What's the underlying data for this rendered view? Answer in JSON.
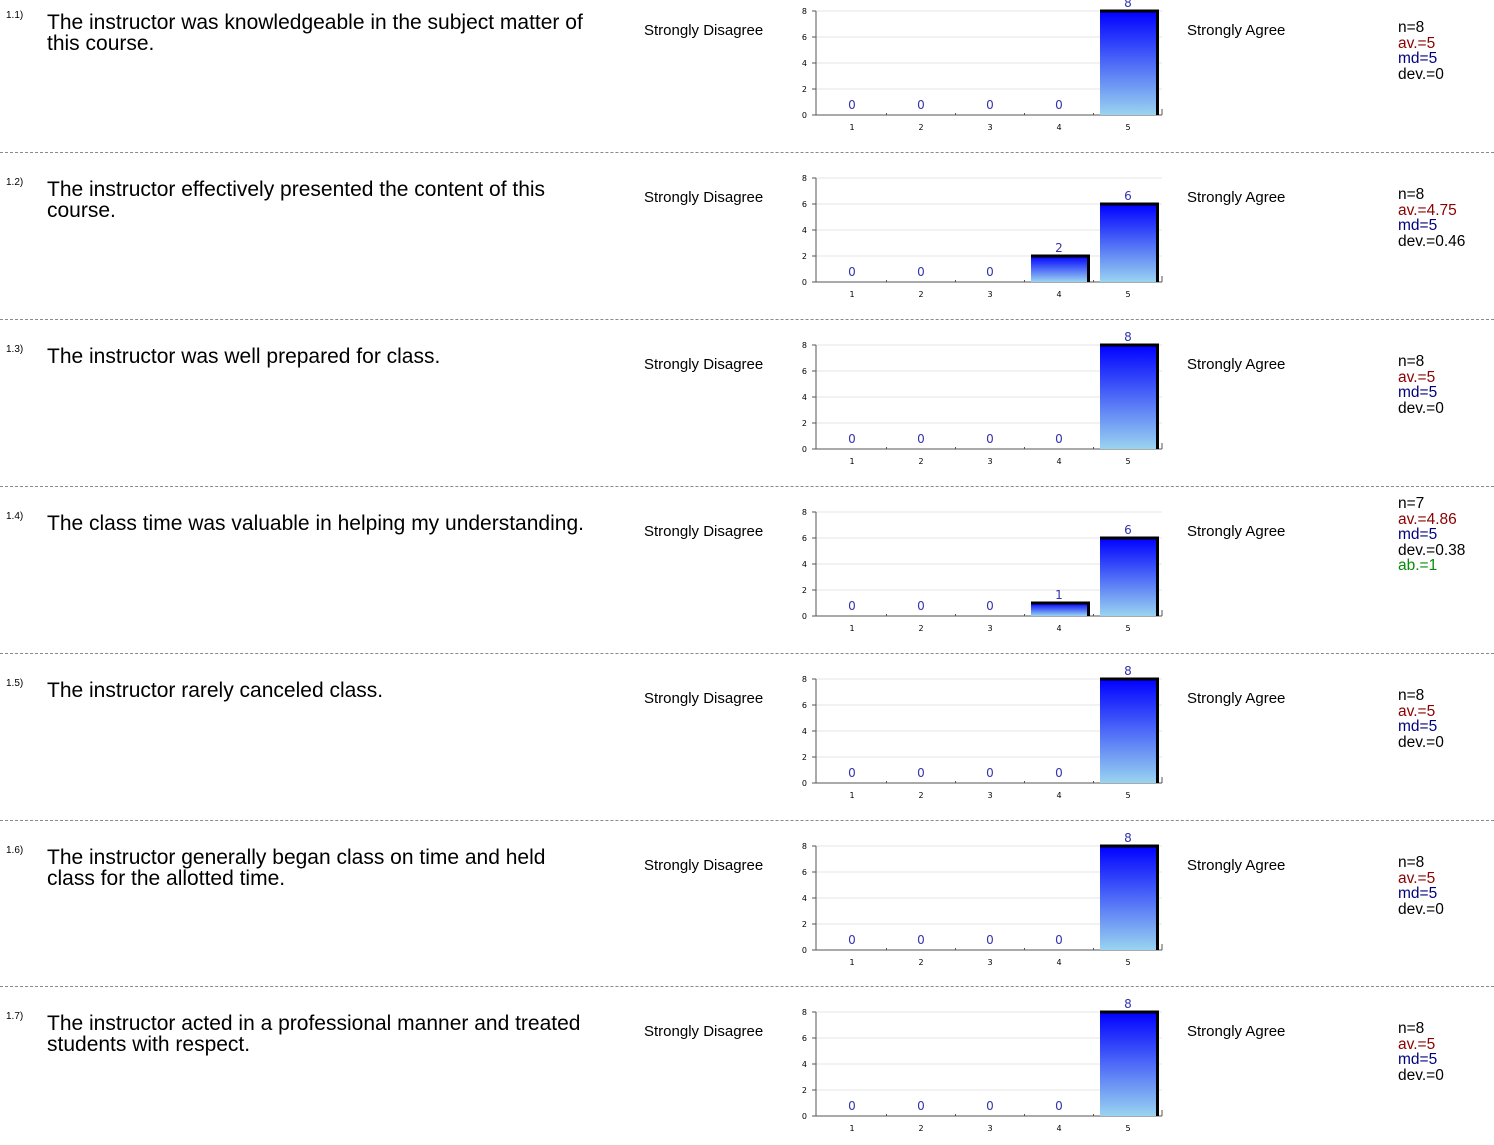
{
  "scale": {
    "left_label": "Strongly Disagree",
    "right_label": "Strongly Agree"
  },
  "colors": {
    "bar_top": "#0000ff",
    "bar_bottom": "#9ad4f0",
    "value_label": "#3333aa",
    "av": "#8b0000",
    "md": "#00007f",
    "ab": "#0a8a0a",
    "separator": "#8a8a8a"
  },
  "chart_data": [
    {
      "type": "bar",
      "categories": [
        "1",
        "2",
        "3",
        "4",
        "5"
      ],
      "values": [
        0,
        0,
        0,
        0,
        8
      ],
      "yticks": [
        0,
        2,
        4,
        6,
        8
      ],
      "ylim": [
        0,
        8
      ]
    },
    {
      "type": "bar",
      "categories": [
        "1",
        "2",
        "3",
        "4",
        "5"
      ],
      "values": [
        0,
        0,
        0,
        2,
        6
      ],
      "yticks": [
        0,
        2,
        4,
        6,
        8
      ],
      "ylim": [
        0,
        8
      ]
    },
    {
      "type": "bar",
      "categories": [
        "1",
        "2",
        "3",
        "4",
        "5"
      ],
      "values": [
        0,
        0,
        0,
        0,
        8
      ],
      "yticks": [
        0,
        2,
        4,
        6,
        8
      ],
      "ylim": [
        0,
        8
      ]
    },
    {
      "type": "bar",
      "categories": [
        "1",
        "2",
        "3",
        "4",
        "5"
      ],
      "values": [
        0,
        0,
        0,
        1,
        6
      ],
      "yticks": [
        0,
        2,
        4,
        6,
        8
      ],
      "ylim": [
        0,
        8
      ]
    },
    {
      "type": "bar",
      "categories": [
        "1",
        "2",
        "3",
        "4",
        "5"
      ],
      "values": [
        0,
        0,
        0,
        0,
        8
      ],
      "yticks": [
        0,
        2,
        4,
        6,
        8
      ],
      "ylim": [
        0,
        8
      ]
    },
    {
      "type": "bar",
      "categories": [
        "1",
        "2",
        "3",
        "4",
        "5"
      ],
      "values": [
        0,
        0,
        0,
        0,
        8
      ],
      "yticks": [
        0,
        2,
        4,
        6,
        8
      ],
      "ylim": [
        0,
        8
      ]
    },
    {
      "type": "bar",
      "categories": [
        "1",
        "2",
        "3",
        "4",
        "5"
      ],
      "values": [
        0,
        0,
        0,
        0,
        8
      ],
      "yticks": [
        0,
        2,
        4,
        6,
        8
      ],
      "ylim": [
        0,
        8
      ]
    }
  ],
  "questions": [
    {
      "num": "1.1)",
      "text": "The instructor was knowledgeable in the subject matter of this course.",
      "stats": {
        "n": "n=8",
        "av": "av.=5",
        "md": "md=5",
        "dev": "dev.=0",
        "ab": ""
      }
    },
    {
      "num": "1.2)",
      "text": "The instructor effectively presented the content of this course.",
      "stats": {
        "n": "n=8",
        "av": "av.=4.75",
        "md": "md=5",
        "dev": "dev.=0.46",
        "ab": ""
      }
    },
    {
      "num": "1.3)",
      "text": "The instructor was well prepared for class.",
      "stats": {
        "n": "n=8",
        "av": "av.=5",
        "md": "md=5",
        "dev": "dev.=0",
        "ab": ""
      }
    },
    {
      "num": "1.4)",
      "text": "The class time was valuable in helping my understanding.",
      "stats": {
        "n": "n=7",
        "av": "av.=4.86",
        "md": "md=5",
        "dev": "dev.=0.38",
        "ab": "ab.=1"
      }
    },
    {
      "num": "1.5)",
      "text": "The instructor rarely canceled class.",
      "stats": {
        "n": "n=8",
        "av": "av.=5",
        "md": "md=5",
        "dev": "dev.=0",
        "ab": ""
      }
    },
    {
      "num": "1.6)",
      "text": "The instructor generally began class on time and held class for the allotted time.",
      "stats": {
        "n": "n=8",
        "av": "av.=5",
        "md": "md=5",
        "dev": "dev.=0",
        "ab": ""
      }
    },
    {
      "num": "1.7)",
      "text": "The instructor acted in a professional manner and treated students with respect.",
      "stats": {
        "n": "n=8",
        "av": "av.=5",
        "md": "md=5",
        "dev": "dev.=0",
        "ab": ""
      }
    }
  ]
}
